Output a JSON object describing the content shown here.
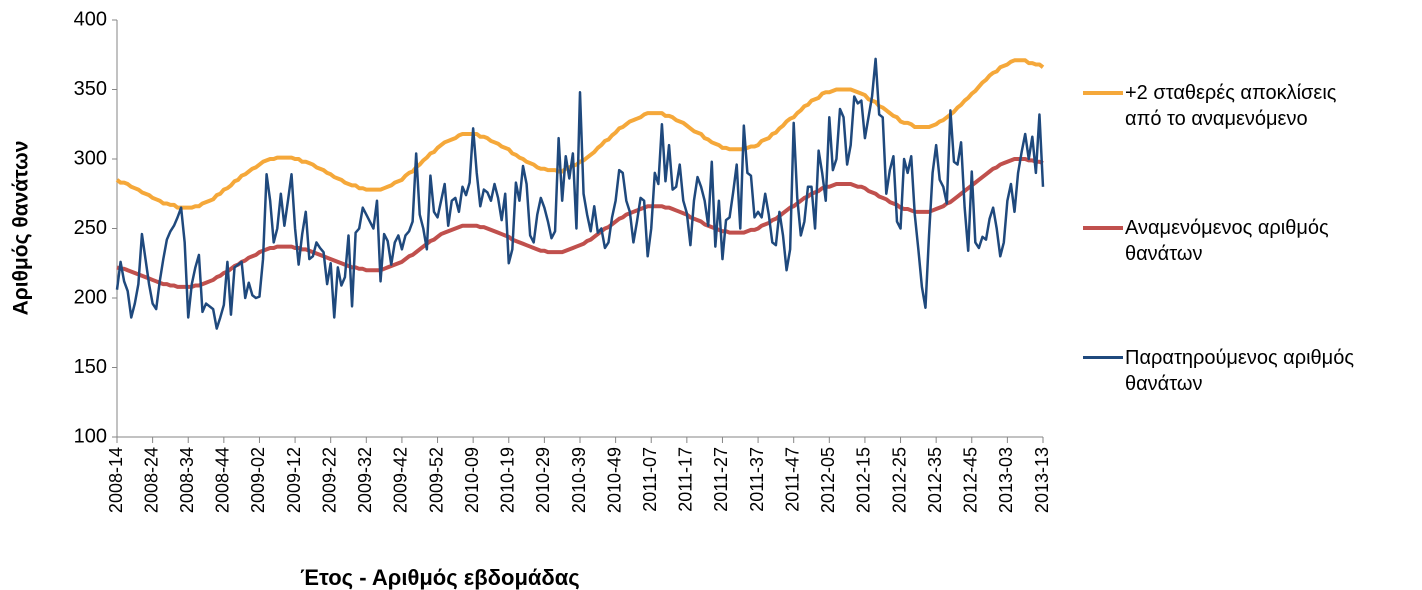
{
  "chart_data": {
    "type": "line",
    "xlabel": "Έτος - Αριθμός εβδομάδας",
    "ylabel": "Αριθμός θανάτων",
    "ylim": [
      100,
      400
    ],
    "yticks": [
      100,
      150,
      200,
      250,
      300,
      350,
      400
    ],
    "legend": "right",
    "grid": false,
    "categories": [
      "2008-14",
      null,
      null,
      null,
      null,
      null,
      null,
      null,
      null,
      null,
      "2008-24",
      null,
      null,
      null,
      null,
      null,
      null,
      null,
      null,
      null,
      "2008-34",
      null,
      null,
      null,
      null,
      null,
      null,
      null,
      null,
      null,
      "2008-44",
      null,
      null,
      null,
      null,
      null,
      null,
      null,
      null,
      null,
      "2009-02",
      null,
      null,
      null,
      null,
      null,
      null,
      null,
      null,
      null,
      "2009-12",
      null,
      null,
      null,
      null,
      null,
      null,
      null,
      null,
      null,
      "2009-22",
      null,
      null,
      null,
      null,
      null,
      null,
      null,
      null,
      null,
      "2009-32",
      null,
      null,
      null,
      null,
      null,
      null,
      null,
      null,
      null,
      "2009-42",
      null,
      null,
      null,
      null,
      null,
      null,
      null,
      null,
      null,
      "2009-52",
      null,
      null,
      null,
      null,
      null,
      null,
      null,
      null,
      null,
      "2010-09",
      null,
      null,
      null,
      null,
      null,
      null,
      null,
      null,
      null,
      "2010-19",
      null,
      null,
      null,
      null,
      null,
      null,
      null,
      null,
      null,
      "2010-29",
      null,
      null,
      null,
      null,
      null,
      null,
      null,
      null,
      null,
      "2010-39",
      null,
      null,
      null,
      null,
      null,
      null,
      null,
      null,
      null,
      "2010-49",
      null,
      null,
      null,
      null,
      null,
      null,
      null,
      null,
      null,
      "2011-07",
      null,
      null,
      null,
      null,
      null,
      null,
      null,
      null,
      null,
      "2011-17",
      null,
      null,
      null,
      null,
      null,
      null,
      null,
      null,
      null,
      "2011-27",
      null,
      null,
      null,
      null,
      null,
      null,
      null,
      null,
      null,
      "2011-37",
      null,
      null,
      null,
      null,
      null,
      null,
      null,
      null,
      null,
      "2011-47",
      null,
      null,
      null,
      null,
      null,
      null,
      null,
      null,
      null,
      "2012-05",
      null,
      null,
      null,
      null,
      null,
      null,
      null,
      null,
      null,
      "2012-15",
      null,
      null,
      null,
      null,
      null,
      null,
      null,
      null,
      null,
      "2012-25",
      null,
      null,
      null,
      null,
      null,
      null,
      null,
      null,
      null,
      "2012-35",
      null,
      null,
      null,
      null,
      null,
      null,
      null,
      null,
      null,
      "2012-45",
      null,
      null,
      null,
      null,
      null,
      null,
      null,
      null,
      null,
      "2013-03",
      null,
      null,
      null,
      null,
      null,
      null,
      null,
      null,
      null,
      "2013-13"
    ],
    "series": [
      {
        "name": "+2 σταθερές αποκλίσεις από το αναμενόμενο",
        "color": "#f5a83a",
        "width": 4,
        "values": [
          285,
          283,
          283,
          282,
          280,
          279,
          278,
          276,
          275,
          274,
          272,
          271,
          270,
          268,
          268,
          267,
          267,
          265,
          265,
          265,
          265,
          265,
          266,
          266,
          268,
          269,
          270,
          271,
          274,
          275,
          278,
          279,
          281,
          284,
          285,
          288,
          289,
          291,
          293,
          294,
          296,
          298,
          299,
          300,
          300,
          301,
          301,
          301,
          301,
          301,
          300,
          300,
          298,
          298,
          297,
          296,
          294,
          293,
          292,
          290,
          289,
          287,
          286,
          285,
          283,
          282,
          281,
          281,
          279,
          279,
          278,
          278,
          278,
          278,
          278,
          279,
          280,
          281,
          283,
          284,
          285,
          288,
          290,
          291,
          294,
          296,
          299,
          301,
          304,
          305,
          308,
          310,
          312,
          313,
          314,
          315,
          317,
          318,
          318,
          318,
          318,
          318,
          316,
          316,
          315,
          313,
          312,
          311,
          309,
          308,
          307,
          304,
          303,
          301,
          300,
          298,
          297,
          296,
          294,
          293,
          293,
          292,
          292,
          292,
          291,
          291,
          293,
          294,
          295,
          296,
          298,
          299,
          301,
          303,
          305,
          308,
          310,
          313,
          314,
          317,
          319,
          322,
          323,
          325,
          327,
          328,
          329,
          330,
          332,
          333,
          333,
          333,
          333,
          333,
          331,
          331,
          330,
          328,
          327,
          326,
          324,
          322,
          320,
          319,
          318,
          315,
          314,
          312,
          311,
          310,
          308,
          308,
          307,
          307,
          307,
          307,
          307,
          308,
          309,
          309,
          310,
          313,
          314,
          315,
          318,
          319,
          322,
          324,
          327,
          329,
          330,
          333,
          335,
          338,
          339,
          342,
          343,
          344,
          347,
          348,
          348,
          349,
          350,
          350,
          350,
          350,
          350,
          349,
          348,
          347,
          346,
          343,
          342,
          341,
          338,
          337,
          335,
          333,
          331,
          330,
          327,
          326,
          326,
          325,
          323,
          323,
          323,
          323,
          323,
          324,
          325,
          327,
          328,
          330,
          332,
          334,
          337,
          339,
          342,
          344,
          347,
          349,
          352,
          355,
          357,
          360,
          362,
          363,
          366,
          367,
          368,
          370,
          371,
          371,
          371,
          371,
          369,
          369,
          368,
          368,
          366
        ]
      },
      {
        "name": "Αναμενόμενος αριθμός θανάτων",
        "color": "#c0504d",
        "width": 4,
        "values": [
          222,
          221,
          221,
          220,
          219,
          218,
          217,
          216,
          215,
          214,
          213,
          212,
          211,
          210,
          210,
          209,
          209,
          208,
          208,
          208,
          208,
          208,
          209,
          209,
          210,
          211,
          212,
          213,
          215,
          216,
          218,
          219,
          221,
          223,
          224,
          226,
          227,
          229,
          230,
          231,
          233,
          234,
          235,
          236,
          236,
          237,
          237,
          237,
          237,
          237,
          236,
          236,
          235,
          235,
          234,
          233,
          232,
          231,
          230,
          229,
          228,
          227,
          226,
          225,
          224,
          223,
          222,
          222,
          221,
          221,
          220,
          220,
          220,
          220,
          220,
          221,
          222,
          223,
          224,
          225,
          226,
          228,
          230,
          231,
          233,
          235,
          237,
          239,
          241,
          242,
          244,
          246,
          247,
          248,
          249,
          250,
          251,
          252,
          252,
          252,
          252,
          252,
          251,
          251,
          250,
          249,
          248,
          247,
          246,
          245,
          244,
          242,
          241,
          240,
          239,
          238,
          237,
          236,
          235,
          234,
          234,
          233,
          233,
          233,
          233,
          233,
          234,
          235,
          236,
          237,
          238,
          239,
          241,
          242,
          244,
          246,
          248,
          250,
          251,
          253,
          255,
          257,
          258,
          260,
          261,
          262,
          263,
          264,
          265,
          266,
          266,
          266,
          266,
          266,
          265,
          265,
          264,
          263,
          262,
          261,
          260,
          258,
          257,
          256,
          255,
          253,
          252,
          251,
          250,
          249,
          248,
          248,
          247,
          247,
          247,
          247,
          247,
          248,
          249,
          249,
          250,
          252,
          253,
          254,
          256,
          257,
          259,
          261,
          263,
          265,
          266,
          268,
          270,
          272,
          273,
          275,
          276,
          277,
          279,
          280,
          280,
          281,
          282,
          282,
          282,
          282,
          282,
          281,
          280,
          280,
          279,
          277,
          276,
          275,
          273,
          272,
          271,
          269,
          268,
          267,
          265,
          264,
          264,
          263,
          262,
          262,
          262,
          262,
          262,
          263,
          264,
          265,
          266,
          268,
          269,
          271,
          273,
          275,
          277,
          279,
          281,
          283,
          285,
          287,
          289,
          291,
          293,
          294,
          296,
          297,
          298,
          299,
          300,
          300,
          300,
          300,
          299,
          299,
          298,
          298,
          297
        ]
      },
      {
        "name": "Παρατηρούμενος αριθμός θανάτων",
        "color": "#1f497d",
        "width": 2.5,
        "values": [
          206,
          226,
          212,
          205,
          186,
          196,
          210,
          246,
          228,
          210,
          196,
          192,
          212,
          228,
          242,
          248,
          252,
          258,
          265,
          240,
          186,
          210,
          222,
          231,
          190,
          196,
          194,
          192,
          178,
          186,
          195,
          226,
          188,
          222,
          224,
          226,
          200,
          211,
          202,
          200,
          201,
          228,
          289,
          270,
          240,
          250,
          275,
          252,
          270,
          289,
          250,
          224,
          246,
          262,
          228,
          230,
          240,
          236,
          233,
          210,
          225,
          186,
          222,
          209,
          215,
          245,
          194,
          247,
          250,
          265,
          260,
          255,
          250,
          270,
          212,
          246,
          241,
          224,
          240,
          245,
          235,
          245,
          248,
          255,
          304,
          260,
          250,
          235,
          288,
          262,
          258,
          270,
          282,
          252,
          270,
          272,
          262,
          280,
          274,
          283,
          322,
          290,
          266,
          278,
          276,
          270,
          282,
          272,
          256,
          275,
          225,
          235,
          283,
          270,
          295,
          282,
          245,
          240,
          260,
          272,
          265,
          255,
          243,
          248,
          315,
          270,
          302,
          286,
          304,
          250,
          348,
          275,
          260,
          248,
          266,
          247,
          250,
          236,
          240,
          258,
          270,
          292,
          290,
          270,
          262,
          240,
          255,
          272,
          270,
          230,
          250,
          290,
          282,
          325,
          284,
          310,
          278,
          280,
          296,
          270,
          261,
          238,
          270,
          287,
          280,
          270,
          252,
          298,
          237,
          270,
          228,
          256,
          258,
          276,
          296,
          250,
          324,
          290,
          288,
          258,
          262,
          258,
          275,
          260,
          240,
          238,
          262,
          245,
          220,
          235,
          326,
          272,
          245,
          255,
          280,
          280,
          250,
          306,
          290,
          270,
          330,
          292,
          300,
          336,
          330,
          296,
          310,
          345,
          340,
          342,
          315,
          330,
          345,
          372,
          332,
          330,
          275,
          292,
          302,
          255,
          250,
          300,
          290,
          302,
          260,
          235,
          208,
          193,
          245,
          290,
          310,
          285,
          280,
          268,
          335,
          298,
          296,
          312,
          265,
          234,
          291,
          240,
          236,
          244,
          242,
          257,
          265,
          250,
          230,
          240,
          270,
          282,
          262,
          290,
          305,
          318,
          300,
          316,
          290,
          332,
          280
        ]
      }
    ]
  }
}
